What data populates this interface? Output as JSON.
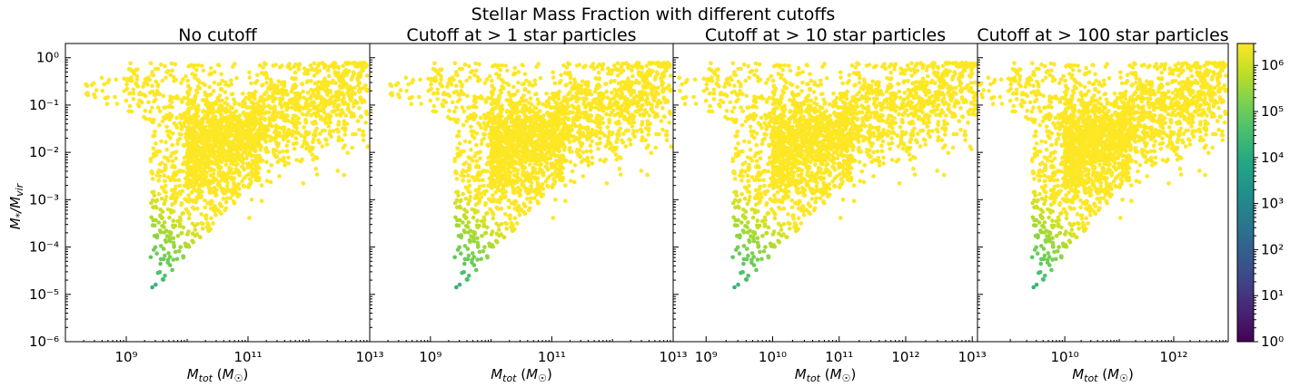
{
  "figure": {
    "suptitle": "Stellar Mass Fraction with different cutoffs",
    "ylabel_main": "M",
    "ylabel_sub1": "*",
    "ylabel_mid": "/M",
    "ylabel_sub2": "vir"
  },
  "chart_data": [
    {
      "type": "scatter",
      "title": "No cutoff",
      "xlabel": "M_tot (M_sun)",
      "x_scale": "log",
      "y_scale": "log",
      "xlim": [
        100000000.0,
        10000000000000.0
      ],
      "ylim": [
        1e-06,
        2
      ],
      "xticks": [
        1000000000.0,
        100000000000.0,
        10000000000000.0
      ],
      "yticks": [
        1e-06,
        1e-05,
        0.0001,
        0.001,
        0.01,
        0.1,
        1.0
      ],
      "color_scale": "viridis, log, number of star particles",
      "min_star_particles": 0
    },
    {
      "type": "scatter",
      "title": "Cutoff at > 1 star particles",
      "xlabel": "M_tot (M_sun)",
      "x_scale": "log",
      "y_scale": "log",
      "xlim": [
        100000000.0,
        10000000000000.0
      ],
      "ylim": [
        1e-06,
        2
      ],
      "xticks": [
        1000000000.0,
        100000000000.0,
        10000000000000.0
      ],
      "color_scale": "viridis, log, number of star particles",
      "min_star_particles": 1
    },
    {
      "type": "scatter",
      "title": "Cutoff at > 10 star particles",
      "xlabel": "M_tot (M_sun)",
      "x_scale": "log",
      "y_scale": "log",
      "xlim": [
        320000000.0,
        12000000000000.0
      ],
      "ylim": [
        1e-06,
        2
      ],
      "xticks": [
        1000000000.0,
        10000000000.0,
        100000000000.0,
        1000000000000.0,
        10000000000000.0
      ],
      "color_scale": "viridis, log, number of star particles",
      "min_star_particles": 10
    },
    {
      "type": "scatter",
      "title": "Cutoff at > 100 star particles",
      "xlabel": "M_tot (M_sun)",
      "x_scale": "log",
      "y_scale": "log",
      "xlim": [
        250000000.0,
        10000000000000.0
      ],
      "ylim": [
        1e-06,
        2
      ],
      "xticks": [
        10000000000.0,
        1000000000000.0
      ],
      "color_scale": "viridis, log, number of star particles",
      "min_star_particles": 100
    }
  ],
  "colorbar": {
    "scale": "log",
    "range": [
      1,
      3000000
    ],
    "ticks": [
      1,
      10,
      100,
      1000,
      10000,
      100000,
      1000000
    ],
    "colormap": "viridis"
  }
}
